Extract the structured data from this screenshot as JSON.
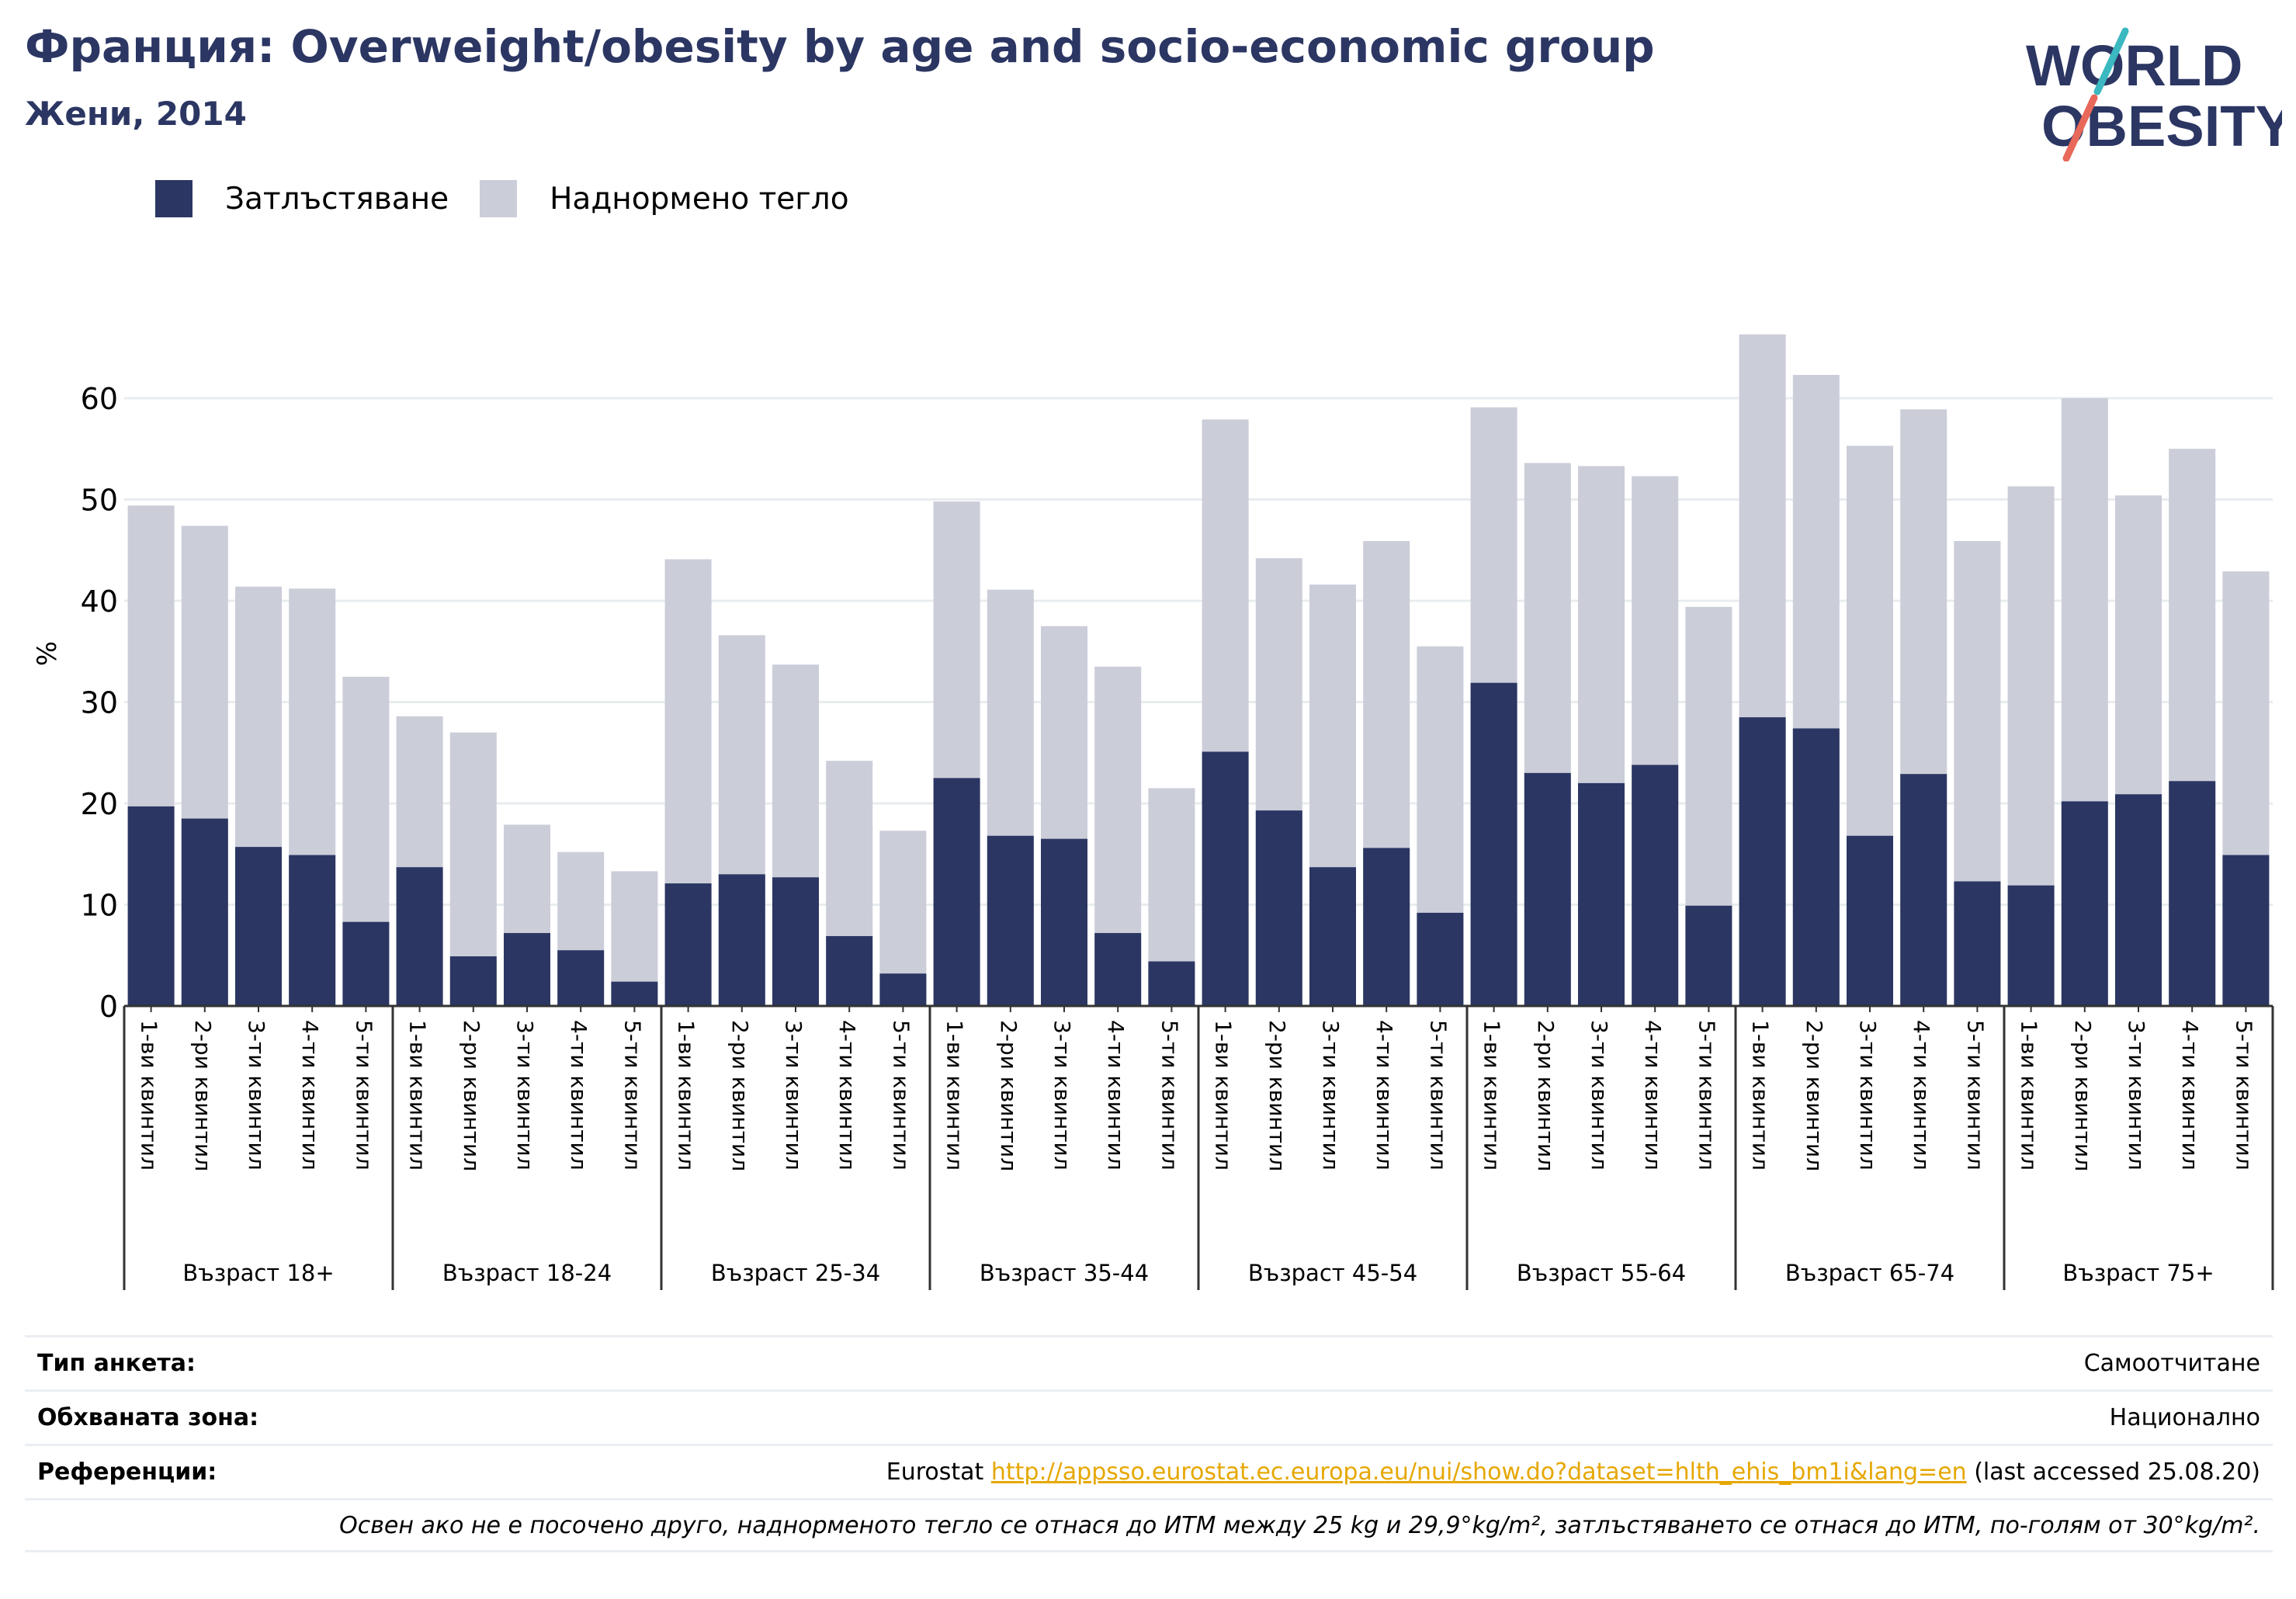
{
  "header": {
    "title": "Франция: Overweight/obesity by age and socio-economic group",
    "subtitle": "Жени, 2014"
  },
  "logo": {
    "line1": "WORLD",
    "line2": "OBESITY",
    "colors": {
      "text": "#2b3663",
      "slash_top": "#3bb8c0",
      "slash_bottom": "#e8685a"
    }
  },
  "legend": {
    "items": [
      {
        "label": "Затлъстяване",
        "color": "#2b3663"
      },
      {
        "label": "Наднормено тегло",
        "color": "#cbcdd9"
      }
    ]
  },
  "chart_data": {
    "type": "bar",
    "stacked": true,
    "ylabel": "%",
    "ylim": [
      0,
      70
    ],
    "yticks": [
      0,
      10,
      20,
      30,
      40,
      50,
      60
    ],
    "grid": true,
    "legend_position": "top-left",
    "quintile_labels": [
      "1-ви квинтил",
      "2-ри квинтил",
      "3-ти квинтил",
      "4-ти квинтил",
      "5-ти квинтил"
    ],
    "groups": [
      {
        "label": "Възраст 18+",
        "obesity": [
          19.7,
          18.5,
          15.7,
          14.9,
          8.3
        ],
        "total": [
          49.4,
          47.4,
          41.4,
          41.2,
          32.5
        ]
      },
      {
        "label": "Възраст 18-24",
        "obesity": [
          13.7,
          4.9,
          7.2,
          5.5,
          2.4
        ],
        "total": [
          28.6,
          27.0,
          17.9,
          15.2,
          13.3
        ]
      },
      {
        "label": "Възраст 25-34",
        "obesity": [
          12.1,
          13.0,
          12.7,
          6.9,
          3.2
        ],
        "total": [
          44.1,
          36.6,
          33.7,
          24.2,
          17.3
        ]
      },
      {
        "label": "Възраст 35-44",
        "obesity": [
          22.5,
          16.8,
          16.5,
          7.2,
          4.4
        ],
        "total": [
          49.8,
          41.1,
          37.5,
          33.5,
          21.5
        ]
      },
      {
        "label": "Възраст 45-54",
        "obesity": [
          25.1,
          19.3,
          13.7,
          15.6,
          9.2
        ],
        "total": [
          57.9,
          44.2,
          41.6,
          45.9,
          35.5
        ]
      },
      {
        "label": "Възраст 55-64",
        "obesity": [
          31.9,
          23.0,
          22.0,
          23.8,
          9.9
        ],
        "total": [
          59.1,
          53.6,
          53.3,
          52.3,
          39.4
        ]
      },
      {
        "label": "Възраст 65-74",
        "obesity": [
          28.5,
          27.4,
          16.8,
          22.9,
          12.3
        ],
        "total": [
          66.3,
          62.3,
          55.3,
          58.9,
          45.9
        ]
      },
      {
        "label": "Възраст 75+",
        "obesity": [
          11.9,
          20.2,
          20.9,
          22.2,
          14.9
        ],
        "total": [
          51.3,
          60.0,
          50.4,
          55.0,
          42.9
        ]
      }
    ],
    "series": [
      {
        "name": "Затлъстяване",
        "color": "#2b3663"
      },
      {
        "name": "Наднормено тегло",
        "color": "#cbcdd9"
      }
    ]
  },
  "info": {
    "survey_type_label": "Тип анкета:",
    "survey_type_value": "Самоотчитане",
    "coverage_label": "Обхваната зона:",
    "coverage_value": "Национално",
    "references_label": "Референции:",
    "references_prefix": "Eurostat",
    "references_link": "http://appsso.eurostat.ec.europa.eu/nui/show.do?dataset=hlth_ehis_bm1i&lang=en",
    "references_suffix": "(last accessed 25.08.20)",
    "note": "Освен ако не е посочено друго, наднорменото тегло се отнася до ИТМ между 25 kg и 29,9°kg/m², затлъстяването се отнася до ИТМ, по-голям от 30°kg/m²."
  }
}
